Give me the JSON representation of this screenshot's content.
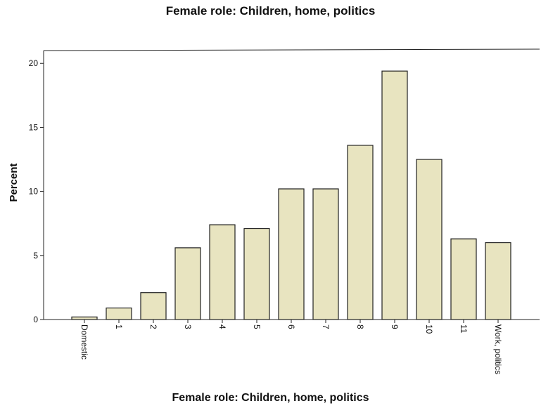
{
  "chart_data": {
    "type": "bar",
    "title": "Female role: Children, home, politics",
    "xlabel": "Female role: Children, home, politics",
    "ylabel": "Percent",
    "categories": [
      "Domestic",
      "1",
      "2",
      "3",
      "4",
      "5",
      "6",
      "7",
      "8",
      "9",
      "10",
      "11",
      "Work, politics"
    ],
    "values": [
      0.2,
      0.9,
      2.1,
      5.6,
      7.4,
      7.1,
      10.2,
      10.2,
      13.6,
      19.4,
      12.5,
      6.3,
      6.0
    ],
    "ylim": [
      0,
      21
    ],
    "yticks": [
      0,
      5,
      10,
      15,
      20
    ],
    "grid": false,
    "colors": {
      "bar_fill": "#e8e4c0",
      "bar_stroke": "#222222",
      "axis": "#222222"
    }
  }
}
